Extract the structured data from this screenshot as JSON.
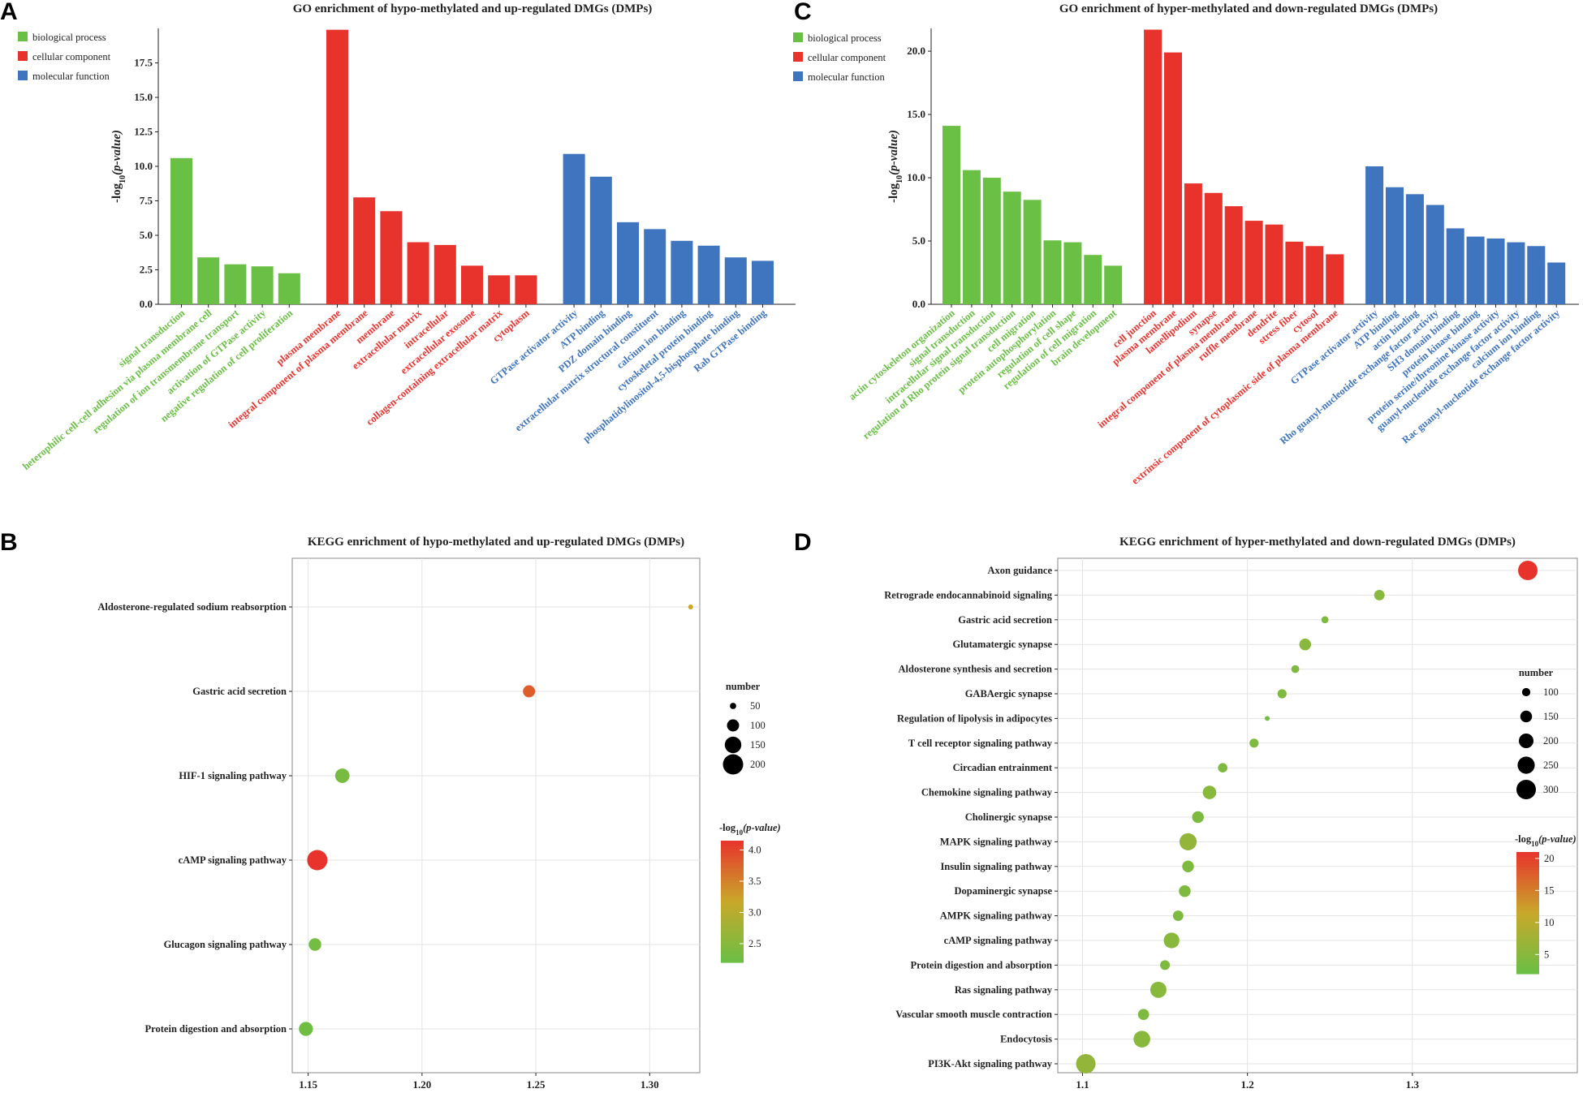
{
  "colors": {
    "biological_process": "#6abf45",
    "cellular_component": "#e8332d",
    "molecular_function": "#3f74bf",
    "gradient_low": "#6abf45",
    "gradient_mid": "#c8a82a",
    "gradient_high": "#e8332d"
  },
  "chart_data": [
    {
      "panel": "A",
      "type": "bar",
      "title": "GO enrichment of hypo-methylated and up-regulated DMGs (DMPs)",
      "ylabel_prefix": "-log",
      "ylabel_sub": "10",
      "ylabel_suffix": "(p-value)",
      "ylim": [
        0,
        20
      ],
      "yticks": [
        0.0,
        2.5,
        5.0,
        7.5,
        10.0,
        12.5,
        15.0,
        17.5
      ],
      "legend": [
        {
          "key": "biological_process",
          "label": "biological process"
        },
        {
          "key": "cellular_component",
          "label": "cellular component"
        },
        {
          "key": "molecular_function",
          "label": "molecular function"
        }
      ],
      "groups": [
        {
          "key": "biological_process",
          "categories": [
            "signal transduction",
            "heterophilic cell-cell adhesion via plasma membrane cell",
            "regulation of ion transmembrane transport",
            "activation of GTPase activity",
            "negative regulation of cell proliferation"
          ],
          "values": [
            10.6,
            3.4,
            2.9,
            2.75,
            2.25
          ]
        },
        {
          "key": "cellular_component",
          "categories": [
            "plasma membrane",
            "integral component of plasma membrane",
            "membrane",
            "extracellular matrix",
            "intracellular",
            "extracellular exosome",
            "collagen-containing extracellular matrix",
            "cytoplasm"
          ],
          "values": [
            19.9,
            7.75,
            6.75,
            4.5,
            4.3,
            2.8,
            2.1,
            2.1
          ]
        },
        {
          "key": "molecular_function",
          "categories": [
            "GTPase activator activity",
            "ATP binding",
            "PDZ domain binding",
            "extracellular matrix structural constituent",
            "calcium ion binding",
            "cytoskeletal protein binding",
            "phosphatidylinositol-4,5-bisphosphate binding",
            "Rab GTPase binding"
          ],
          "values": [
            10.9,
            9.25,
            5.95,
            5.45,
            4.6,
            4.25,
            3.4,
            3.15
          ]
        }
      ]
    },
    {
      "panel": "C",
      "type": "bar",
      "title": "GO enrichment of hyper-methylated and down-regulated DMGs (DMPs)",
      "ylabel_prefix": "-log",
      "ylabel_sub": "10",
      "ylabel_suffix": "(p-value)",
      "ylim": [
        0,
        21.8
      ],
      "yticks": [
        0.0,
        5.0,
        10.0,
        15.0,
        20.0
      ],
      "legend": [
        {
          "key": "biological_process",
          "label": "biological process"
        },
        {
          "key": "cellular_component",
          "label": "cellular component"
        },
        {
          "key": "molecular_function",
          "label": "molecular function"
        }
      ],
      "groups": [
        {
          "key": "biological_process",
          "categories": [
            "actin cytoskeleton organization",
            "signal transduction",
            "intracellular signal transduction",
            "regulation of Rho protein signal transduction",
            "cell migration",
            "protein autophosphorylation",
            "regulation of cell shape",
            "regulation of cell migration",
            "brain development"
          ],
          "values": [
            14.1,
            10.6,
            10.0,
            8.9,
            8.25,
            5.05,
            4.9,
            3.9,
            3.05
          ]
        },
        {
          "key": "cellular_component",
          "categories": [
            "cell junction",
            "plasma membrane",
            "lamellipodium",
            "synapse",
            "integral component of plasma membrane",
            "ruffle membrane",
            "dendrite",
            "stress fiber",
            "cytosol",
            "extrinsic component of cytoplasmic side of plasma membrane"
          ],
          "values": [
            21.7,
            19.9,
            9.55,
            8.8,
            7.75,
            6.6,
            6.3,
            4.95,
            4.6,
            3.95
          ]
        },
        {
          "key": "molecular_function",
          "categories": [
            "GTPase activator activity",
            "ATP binding",
            "actin binding",
            "Rho guanyl-nucleotide exchange factor activity",
            "SH3 domain binding",
            "protein kinase binding",
            "protein serine/threonine kinase activity",
            "guanyl-nucleotide exchange factor activity",
            "calcium ion binding",
            "Rac guanyl-nucleotide exchange factor activity"
          ],
          "values": [
            10.9,
            9.25,
            8.7,
            7.85,
            6.0,
            5.35,
            5.2,
            4.9,
            4.6,
            3.3
          ]
        }
      ]
    },
    {
      "panel": "B",
      "type": "scatter",
      "title": "KEGG enrichment of hypo-methylated and up-regulated DMGs (DMPs)",
      "xlim": [
        1.143,
        1.322
      ],
      "xticks": [
        1.15,
        1.2,
        1.25,
        1.3
      ],
      "xtick_labels": [
        "1.15",
        "1.20",
        "1.25",
        "1.30"
      ],
      "size_legend_title": "number",
      "size_legend": [
        50,
        100,
        150,
        200
      ],
      "size_domain": [
        40,
        200
      ],
      "color_legend_prefix": "-log",
      "color_legend_sub": "10",
      "color_legend_suffix": "(p-value)",
      "color_range": [
        2.2,
        4.15
      ],
      "color_ticks": [
        2.5,
        3.0,
        3.5,
        4.0
      ],
      "color_tick_labels": [
        "2.5",
        "3.0",
        "3.5",
        "4.0"
      ],
      "points": [
        {
          "term": "Aldosterone-regulated sodium reabsorption",
          "x": 1.318,
          "number": 40,
          "logp": 3.2
        },
        {
          "term": "Gastric acid secretion",
          "x": 1.247,
          "number": 100,
          "logp": 3.8
        },
        {
          "term": "HIF-1 signaling pathway",
          "x": 1.165,
          "number": 125,
          "logp": 2.35
        },
        {
          "term": "cAMP signaling pathway",
          "x": 1.154,
          "number": 200,
          "logp": 4.15
        },
        {
          "term": "Glucagon signaling pathway",
          "x": 1.153,
          "number": 105,
          "logp": 2.3
        },
        {
          "term": "Protein digestion and absorption",
          "x": 1.149,
          "number": 120,
          "logp": 2.25
        }
      ]
    },
    {
      "panel": "D",
      "type": "scatter",
      "title": "KEGG enrichment of hyper-methylated and down-regulated DMGs (DMPs)",
      "xlim": [
        1.085,
        1.4
      ],
      "xticks": [
        1.1,
        1.2,
        1.3
      ],
      "xtick_labels": [
        "1.1",
        "1.2",
        "1.3"
      ],
      "size_legend_title": "number",
      "size_legend": [
        100,
        150,
        200,
        250,
        300
      ],
      "size_domain": [
        60,
        300
      ],
      "color_legend_prefix": "-log",
      "color_legend_sub": "10",
      "color_legend_suffix": "(p-value)",
      "color_range": [
        2,
        21
      ],
      "color_ticks": [
        5,
        10,
        15,
        20
      ],
      "color_tick_labels": [
        "5",
        "10",
        "15",
        "20"
      ],
      "points": [
        {
          "term": "Axon guidance",
          "x": 1.37,
          "number": 300,
          "logp": 21
        },
        {
          "term": "Retrograde endocannabinoid signaling",
          "x": 1.28,
          "number": 130,
          "logp": 5
        },
        {
          "term": "Gastric acid secretion",
          "x": 1.247,
          "number": 85,
          "logp": 4
        },
        {
          "term": "Glutamatergic synapse",
          "x": 1.235,
          "number": 150,
          "logp": 5
        },
        {
          "term": "Aldosterone synthesis and secretion",
          "x": 1.229,
          "number": 95,
          "logp": 4
        },
        {
          "term": "GABAergic synapse",
          "x": 1.221,
          "number": 110,
          "logp": 4
        },
        {
          "term": "Regulation of lipolysis in adipocytes",
          "x": 1.212,
          "number": 60,
          "logp": 3
        },
        {
          "term": "T cell receptor signaling pathway",
          "x": 1.204,
          "number": 110,
          "logp": 4
        },
        {
          "term": "Circadian entrainment",
          "x": 1.185,
          "number": 115,
          "logp": 4
        },
        {
          "term": "Chemokine signaling pathway",
          "x": 1.177,
          "number": 180,
          "logp": 5
        },
        {
          "term": "Cholinergic synapse",
          "x": 1.17,
          "number": 150,
          "logp": 4
        },
        {
          "term": "MAPK signaling pathway",
          "x": 1.164,
          "number": 250,
          "logp": 6
        },
        {
          "term": "Insulin signaling pathway",
          "x": 1.164,
          "number": 150,
          "logp": 4
        },
        {
          "term": "Dopaminergic synapse",
          "x": 1.162,
          "number": 150,
          "logp": 4
        },
        {
          "term": "AMPK signaling pathway",
          "x": 1.158,
          "number": 130,
          "logp": 4
        },
        {
          "term": "cAMP signaling pathway",
          "x": 1.154,
          "number": 220,
          "logp": 5
        },
        {
          "term": "Protein digestion and absorption",
          "x": 1.15,
          "number": 120,
          "logp": 4
        },
        {
          "term": "Ras signaling pathway",
          "x": 1.146,
          "number": 230,
          "logp": 5
        },
        {
          "term": "Vascular smooth muscle contraction",
          "x": 1.137,
          "number": 140,
          "logp": 4
        },
        {
          "term": "Endocytosis",
          "x": 1.136,
          "number": 240,
          "logp": 5
        },
        {
          "term": "PI3K-Akt signaling pathway",
          "x": 1.102,
          "number": 300,
          "logp": 6
        }
      ]
    }
  ]
}
